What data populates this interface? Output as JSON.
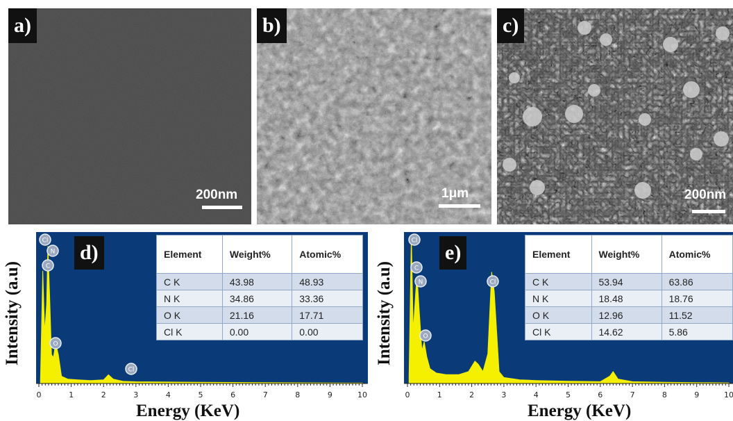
{
  "panels": {
    "a": {
      "label": "a)",
      "scale": "200nm"
    },
    "b": {
      "label": "b)",
      "scale": "1μm"
    },
    "c": {
      "label": "c)",
      "scale": "200nm"
    }
  },
  "eds": [
    {
      "label": "d)",
      "ylabel": "Intensity  (a.u)",
      "xlabel": "Energy (KeV)",
      "table": {
        "headers": [
          "Element",
          "Weight%",
          "Atomic%"
        ],
        "rows": [
          [
            "C K",
            "43.98",
            "48.93"
          ],
          [
            "N K",
            "34.86",
            "33.36"
          ],
          [
            "O K",
            "21.16",
            "17.71"
          ],
          [
            "Cl K",
            "0.00",
            "0.00"
          ]
        ]
      },
      "peak_markers": [
        "Cl",
        "N",
        "C",
        "O",
        "Cl"
      ]
    },
    {
      "label": "e)",
      "ylabel": "Intensity  (a.u)",
      "xlabel": "Energy (KeV)",
      "table": {
        "headers": [
          "Element",
          "Weight%",
          "Atomic%"
        ],
        "rows": [
          [
            "C K",
            "53.94",
            "63.86"
          ],
          [
            "N K",
            "18.48",
            "18.76"
          ],
          [
            "O K",
            "12.96",
            "11.52"
          ],
          [
            "Cl K",
            "14.62",
            "5.86"
          ]
        ]
      },
      "peak_markers": [
        "Cl",
        "C",
        "N",
        "O",
        "Cl"
      ]
    }
  ],
  "chart_data": [
    {
      "type": "line",
      "xlabel": "Energy (KeV)",
      "ylabel": "Intensity  (a.u)",
      "xlim": [
        0,
        10
      ],
      "x_ticks": [
        "0",
        "1",
        "2",
        "3",
        "4",
        "5",
        "6",
        "7",
        "8",
        "9",
        "10"
      ],
      "series": [
        {
          "x": [
            0.05,
            0.12,
            0.18,
            0.24,
            0.28,
            0.33,
            0.39,
            0.45,
            0.52,
            0.6,
            0.7,
            0.9,
            1.2,
            1.6,
            2.0,
            2.15,
            2.3,
            2.6,
            3.0,
            4.0,
            5.0,
            6.0,
            7.0,
            8.0,
            9.0,
            10.0
          ],
          "y": [
            0.02,
            0.78,
            0.35,
            0.55,
            0.95,
            0.62,
            0.2,
            0.18,
            0.28,
            0.2,
            0.05,
            0.03,
            0.025,
            0.02,
            0.025,
            0.06,
            0.03,
            0.015,
            0.012,
            0.01,
            0.008,
            0.007,
            0.006,
            0.005,
            0.004,
            0.003
          ]
        }
      ]
    },
    {
      "type": "line",
      "xlabel": "Energy (KeV)",
      "ylabel": "Intensity  (a.u)",
      "xlim": [
        0,
        10
      ],
      "x_ticks": [
        "0",
        "1",
        "2",
        "3",
        "4",
        "5",
        "6",
        "7",
        "8",
        "9",
        "10"
      ],
      "series": [
        {
          "x": [
            0.05,
            0.12,
            0.18,
            0.26,
            0.3,
            0.37,
            0.45,
            0.52,
            0.6,
            0.7,
            0.9,
            1.2,
            1.6,
            1.9,
            2.1,
            2.2,
            2.35,
            2.5,
            2.62,
            2.7,
            2.85,
            3.0,
            3.5,
            4.0,
            5.0,
            6.0,
            6.3,
            6.4,
            6.55,
            7.0,
            8.0,
            9.0,
            10.0
          ],
          "y": [
            0.05,
            1.0,
            0.35,
            0.62,
            0.72,
            0.48,
            0.22,
            0.28,
            0.18,
            0.1,
            0.07,
            0.06,
            0.06,
            0.08,
            0.15,
            0.13,
            0.08,
            0.2,
            0.75,
            0.62,
            0.08,
            0.04,
            0.025,
            0.02,
            0.015,
            0.012,
            0.05,
            0.08,
            0.03,
            0.012,
            0.008,
            0.006,
            0.004
          ]
        }
      ]
    }
  ]
}
